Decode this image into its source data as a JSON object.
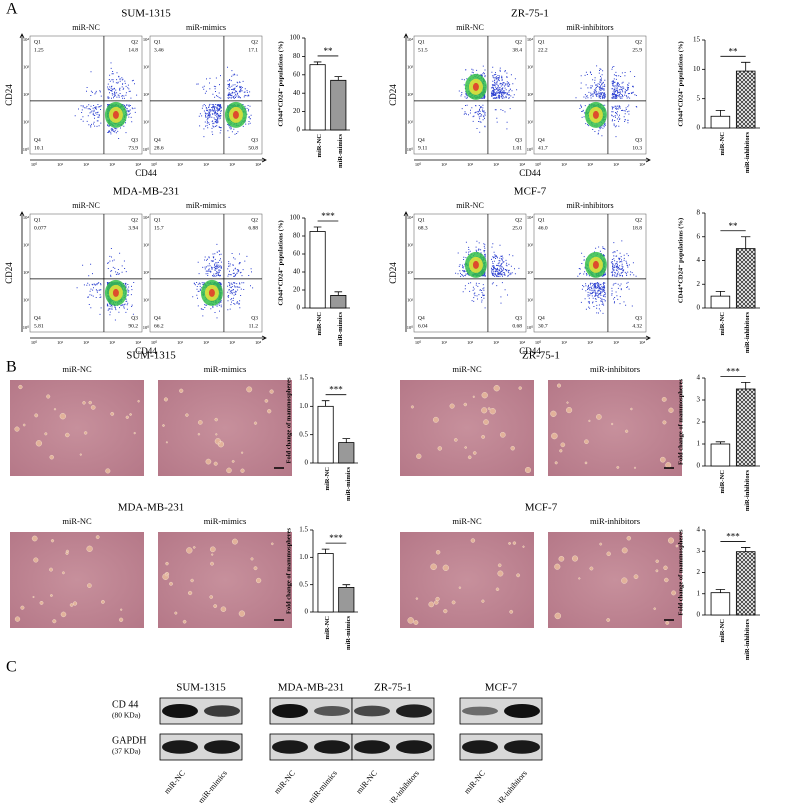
{
  "panel_labels": [
    "A",
    "B",
    "C"
  ],
  "flow_axis": {
    "x": "CD44",
    "y": "CD24",
    "ticks": [
      "10⁰",
      "10¹",
      "10²",
      "10³",
      "10⁴"
    ],
    "quadrants": [
      "Q1",
      "Q2",
      "Q3",
      "Q4"
    ]
  },
  "flow": [
    {
      "title": "SUM-1315",
      "plots": [
        {
          "label": "miR-NC",
          "q": [
            "1.25",
            "14.8",
            "73.9",
            "10.1"
          ]
        },
        {
          "label": "miR-mimics",
          "q": [
            "3.46",
            "17.1",
            "50.8",
            "28.6"
          ]
        }
      ]
    },
    {
      "title": "ZR-75-1",
      "plots": [
        {
          "label": "miR-NC",
          "q": [
            "51.5",
            "38.4",
            "1.01",
            "9.11"
          ]
        },
        {
          "label": "miR-inhibitors",
          "q": [
            "22.2",
            "25.9",
            "10.3",
            "41.7"
          ]
        }
      ]
    },
    {
      "title": "MDA-MB-231",
      "plots": [
        {
          "label": "miR-NC",
          "q": [
            "0.077",
            "3.94",
            "90.2",
            "5.81"
          ]
        },
        {
          "label": "miR-mimics",
          "q": [
            "15.7",
            "6.88",
            "11.2",
            "66.2"
          ]
        }
      ]
    },
    {
      "title": "MCF-7",
      "plots": [
        {
          "label": "miR-NC",
          "q": [
            "68.3",
            "25.0",
            "0.68",
            "6.04"
          ]
        },
        {
          "label": "miR-inhibitors",
          "q": [
            "46.0",
            "18.8",
            "4.32",
            "30.7"
          ]
        }
      ]
    }
  ],
  "chart_data": [
    {
      "type": "bar",
      "ylabel": "CD44⁺CD24⁻ populations (%)",
      "categories": [
        "miR-NC",
        "miR-mimics"
      ],
      "values": [
        71,
        54
      ],
      "errors": [
        3,
        4
      ],
      "colors": [
        "#ffffff",
        "#999999"
      ],
      "hatch": false,
      "significance": "**",
      "ylim": [
        0,
        100
      ],
      "yticks": [
        0,
        20,
        40,
        60,
        80,
        100
      ]
    },
    {
      "type": "bar",
      "ylabel": "CD44⁺CD24⁻ populations (%)",
      "categories": [
        "miR-NC",
        "miR-inhibitors"
      ],
      "values": [
        2,
        9.7
      ],
      "errors": [
        1,
        1.5
      ],
      "colors": [
        "#ffffff",
        "#555555"
      ],
      "hatch": true,
      "significance": "**",
      "ylim": [
        0,
        15
      ],
      "yticks": [
        0,
        5,
        10,
        15
      ]
    },
    {
      "type": "bar",
      "ylabel": "CD44⁺CD24⁻ populations (%)",
      "categories": [
        "miR-NC",
        "miR-mimics"
      ],
      "values": [
        85,
        14
      ],
      "errors": [
        5,
        4
      ],
      "colors": [
        "#ffffff",
        "#999999"
      ],
      "hatch": false,
      "significance": "***",
      "ylim": [
        0,
        100
      ],
      "yticks": [
        0,
        20,
        40,
        60,
        80,
        100
      ]
    },
    {
      "type": "bar",
      "ylabel": "CD44⁺CD24⁻ populations (%)",
      "categories": [
        "miR-NC",
        "miR-inhibitors"
      ],
      "values": [
        1,
        5
      ],
      "errors": [
        0.4,
        1
      ],
      "colors": [
        "#ffffff",
        "#555555"
      ],
      "hatch": true,
      "significance": "**",
      "ylim": [
        0,
        8
      ],
      "yticks": [
        0,
        2,
        4,
        6,
        8
      ]
    },
    {
      "type": "bar",
      "ylabel": "Fold change of mammospheres",
      "categories": [
        "miR-NC",
        "miR-mimics"
      ],
      "values": [
        1,
        0.36
      ],
      "errors": [
        0.1,
        0.07
      ],
      "colors": [
        "#ffffff",
        "#999999"
      ],
      "hatch": false,
      "significance": "***",
      "ylim": [
        0,
        1.5
      ],
      "yticks": [
        0,
        0.5,
        {
          "value": 1,
          "label": "1.0"
        },
        1.5
      ]
    },
    {
      "type": "bar",
      "ylabel": "Fold change of mammospheres",
      "categories": [
        "miR-NC",
        "miR-inhibitors"
      ],
      "values": [
        1,
        3.5
      ],
      "errors": [
        0.1,
        0.3
      ],
      "colors": [
        "#ffffff",
        "#555555"
      ],
      "hatch": true,
      "significance": "***",
      "ylim": [
        0,
        4
      ],
      "yticks": [
        0,
        1,
        2,
        3,
        4
      ]
    },
    {
      "type": "bar",
      "ylabel": "Fold change of mammospheres",
      "categories": [
        "miR-NC",
        "miR-mimics"
      ],
      "values": [
        1.07,
        0.45
      ],
      "errors": [
        0.08,
        0.05
      ],
      "colors": [
        "#ffffff",
        "#999999"
      ],
      "hatch": false,
      "significance": "***",
      "ylim": [
        0,
        1.5
      ],
      "yticks": [
        0,
        0.5,
        {
          "value": 1,
          "label": "1.0"
        },
        1.5
      ]
    },
    {
      "type": "bar",
      "ylabel": "Fold change of mammospheres",
      "categories": [
        "miR-NC",
        "miR-inhibitors"
      ],
      "values": [
        1.05,
        2.98
      ],
      "errors": [
        0.15,
        0.2
      ],
      "colors": [
        "#ffffff",
        "#555555"
      ],
      "hatch": true,
      "significance": "***",
      "ylim": [
        0,
        4
      ],
      "yticks": [
        0,
        1,
        2,
        3,
        4
      ]
    }
  ],
  "spheres": [
    {
      "title": "SUM-1315",
      "labels": [
        "miR-NC",
        "miR-mimics"
      ]
    },
    {
      "title": "ZR-75-1",
      "labels": [
        "miR-NC",
        "miR-inhibitors"
      ]
    },
    {
      "title": "MDA-MB-231",
      "labels": [
        "miR-NC",
        "miR-mimics"
      ]
    },
    {
      "title": "MCF-7",
      "labels": [
        "miR-NC",
        "miR-inhibitors"
      ]
    }
  ],
  "western": {
    "titles": [
      "SUM-1315",
      "MDA-MB-231",
      "ZR-75-1",
      "MCF-7"
    ],
    "rows": [
      {
        "name": "CD 44",
        "weight": "(80 KDa)"
      },
      {
        "name": "GAPDH",
        "weight": "(37 KDa)"
      }
    ],
    "lanes": [
      [
        "miR-NC",
        "miR-mimics"
      ],
      [
        "miR-NC",
        "miR-mimics"
      ],
      [
        "miR-NC",
        "miR-inhibitors"
      ],
      [
        "miR-NC",
        "miR-inhibitors"
      ]
    ]
  }
}
